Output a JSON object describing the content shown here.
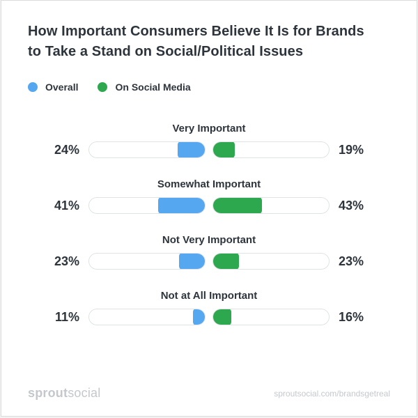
{
  "title": {
    "line1": "How Important Consumers Believe It Is for Brands",
    "line2": "to Take a Stand on Social/Political Issues"
  },
  "legend": {
    "overall_label": "Overall",
    "social_label": "On Social Media"
  },
  "colors": {
    "overall_blue": "#55a8f0",
    "social_green": "#2ea84e",
    "text_dark": "#2d343c",
    "track_border": "#e0e3e6",
    "footer_gray": "#c4c8cc"
  },
  "chart_data": {
    "type": "bar",
    "variant": "mirrored-pill-progress-bars",
    "title": "How Important Consumers Believe It Is for Brands to Take a Stand on Social/Political Issues",
    "categories": [
      "Very Important",
      "Somewhat Important",
      "Not Very Important",
      "Not at All Important"
    ],
    "series": [
      {
        "name": "Overall",
        "color": "#55a8f0",
        "values": [
          24,
          41,
          23,
          11
        ],
        "unit": "%",
        "direction": "grows-left-from-center"
      },
      {
        "name": "On Social Media",
        "color": "#2ea84e",
        "values": [
          19,
          43,
          23,
          16
        ],
        "unit": "%",
        "direction": "grows-right-from-center"
      }
    ],
    "value_range": [
      0,
      100
    ],
    "legend_position": "top-left",
    "grid": false
  },
  "rows": [
    {
      "category": "Very Important",
      "overall_label": "24%",
      "overall_pct": 24,
      "social_label": "19%",
      "social_pct": 19
    },
    {
      "category": "Somewhat Important",
      "overall_label": "41%",
      "overall_pct": 41,
      "social_label": "43%",
      "social_pct": 43
    },
    {
      "category": "Not Very Important",
      "overall_label": "23%",
      "overall_pct": 23,
      "social_label": "23%",
      "social_pct": 23
    },
    {
      "category": "Not at All Important",
      "overall_label": "11%",
      "overall_pct": 11,
      "social_label": "16%",
      "social_pct": 16
    }
  ],
  "footer": {
    "logo_bold": "sprout",
    "logo_light": "social",
    "url": "sproutsocial.com/brandsgetreal"
  }
}
